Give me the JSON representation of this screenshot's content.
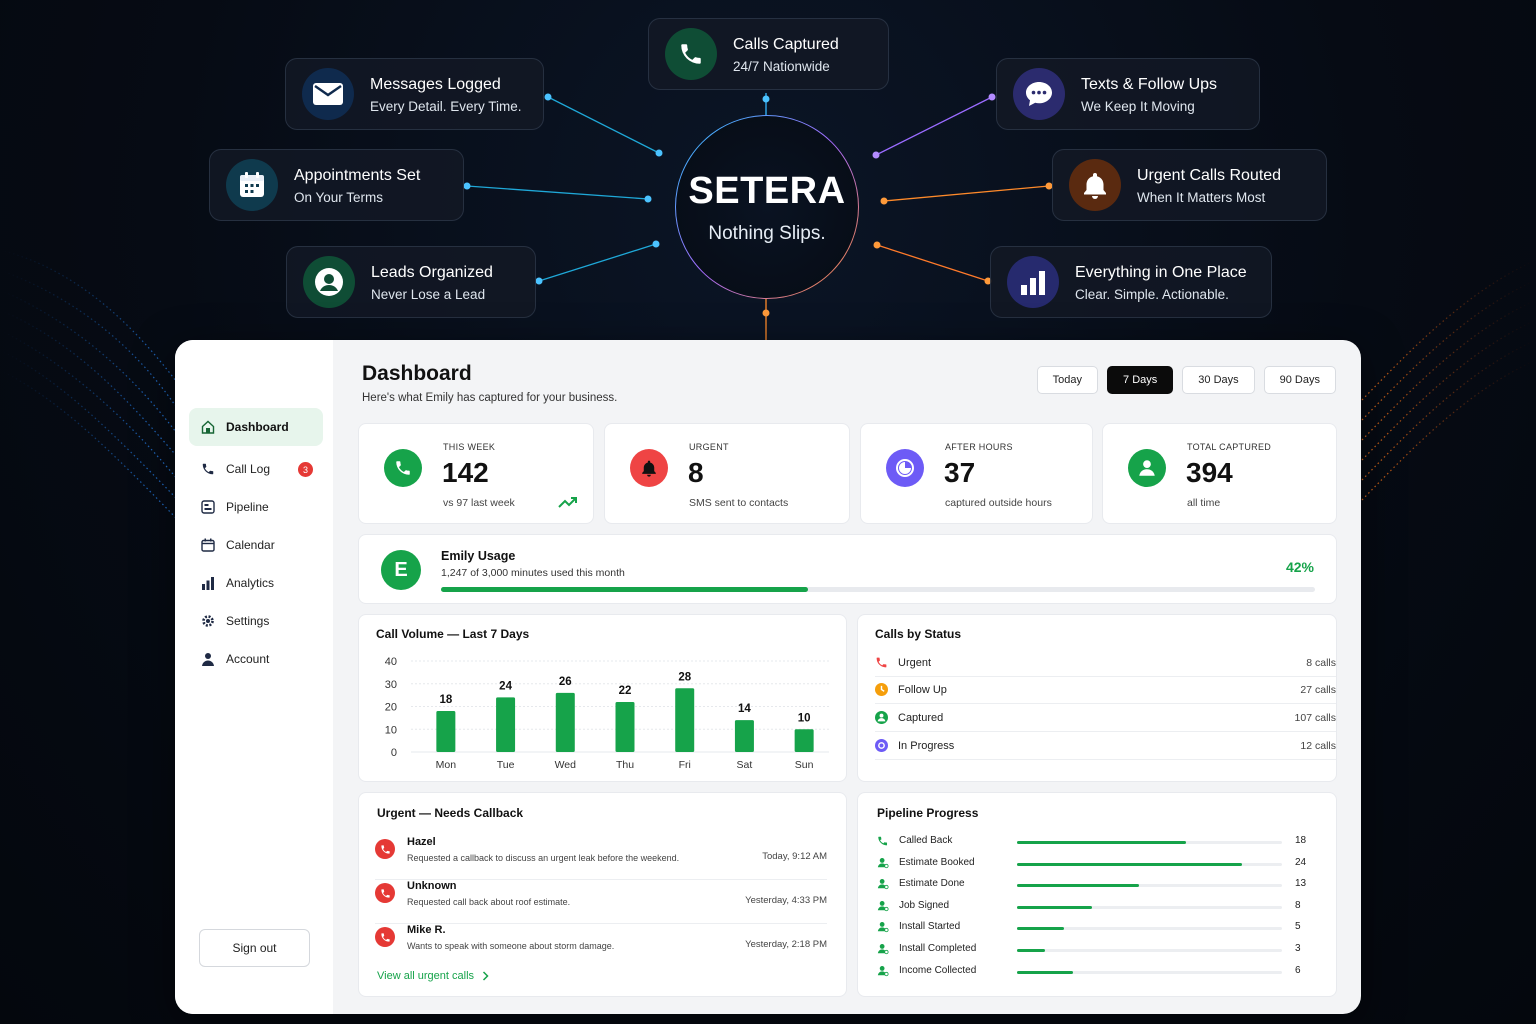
{
  "hero": {
    "brand": "SETERA",
    "tagline": "Nothing Slips.",
    "features": [
      {
        "title": "Calls Captured",
        "subtitle": "24/7 Nationwide",
        "icon": "phone-icon"
      },
      {
        "title": "Messages Logged",
        "subtitle": "Every Detail. Every Time.",
        "icon": "envelope-icon"
      },
      {
        "title": "Texts & Follow Ups",
        "subtitle": "We Keep It Moving",
        "icon": "chat-bubble-icon"
      },
      {
        "title": "Appointments Set",
        "subtitle": "On Your Terms",
        "icon": "calendar-icon"
      },
      {
        "title": "Urgent Calls Routed",
        "subtitle": "When It Matters Most",
        "icon": "bell-icon"
      },
      {
        "title": "Leads Organized",
        "subtitle": "Never Lose a Lead",
        "icon": "user-icon"
      },
      {
        "title": "Everything in One Place",
        "subtitle": "Clear. Simple. Actionable.",
        "icon": "bar-chart-icon"
      }
    ]
  },
  "sidebar": {
    "items": [
      {
        "label": "Dashboard",
        "icon": "home-icon",
        "active": true
      },
      {
        "label": "Call Log",
        "icon": "phone-icon",
        "badge": "3"
      },
      {
        "label": "Pipeline",
        "icon": "pipeline-icon"
      },
      {
        "label": "Calendar",
        "icon": "calendar-icon"
      },
      {
        "label": "Analytics",
        "icon": "bar-chart-icon"
      },
      {
        "label": "Settings",
        "icon": "gear-icon"
      },
      {
        "label": "Account",
        "icon": "user-icon"
      }
    ],
    "signout": "Sign out"
  },
  "header": {
    "title": "Dashboard",
    "subtitle": "Here's what Emily has captured for your business.",
    "ranges": [
      "Today",
      "7 Days",
      "30 Days",
      "90 Days"
    ],
    "active_range": "7 Days"
  },
  "stats": [
    {
      "label": "THIS WEEK",
      "value": "142",
      "note": "vs 97 last week",
      "color": "#16a34a",
      "icon": "phone-icon"
    },
    {
      "label": "URGENT",
      "value": "8",
      "note": "SMS sent to contacts",
      "color": "#ef4444",
      "icon": "bell-icon"
    },
    {
      "label": "AFTER HOURS",
      "value": "37",
      "note": "captured outside hours",
      "color": "#6d5bf6",
      "icon": "clock-pie-icon"
    },
    {
      "label": "TOTAL CAPTURED",
      "value": "394",
      "note": "all time",
      "color": "#16a34a",
      "icon": "user-icon"
    }
  ],
  "usage": {
    "avatar": "E",
    "title": "Emily Usage",
    "detail": "1,247 of 3,000 minutes used this month",
    "percent_label": "42%",
    "fraction": 0.42
  },
  "chart_data": {
    "type": "bar",
    "title": "Call Volume — Last 7 Days",
    "categories": [
      "Mon",
      "Tue",
      "Wed",
      "Thu",
      "Fri",
      "Sat",
      "Sun"
    ],
    "values": [
      18,
      24,
      26,
      22,
      28,
      14,
      10
    ],
    "yticks": [
      "0",
      "10",
      "20",
      "30",
      "40"
    ],
    "ylim": [
      0,
      40
    ],
    "grid": true,
    "color": "#16a34a"
  },
  "calls_by_status": {
    "title": "Calls by Status",
    "rows": [
      {
        "label": "Urgent",
        "count": "8 calls",
        "color": "#ef4444"
      },
      {
        "label": "Follow Up",
        "count": "27 calls",
        "color": "#f59e0b"
      },
      {
        "label": "Captured",
        "count": "107 calls",
        "color": "#16a34a"
      },
      {
        "label": "In Progress",
        "count": "12 calls",
        "color": "#6d5bf6"
      }
    ]
  },
  "urgent": {
    "title": "Urgent — Needs Callback",
    "rows": [
      {
        "name": "Hazel",
        "desc": "Requested a callback to discuss an urgent leak before the weekend.",
        "time": "Today, 9:12 AM"
      },
      {
        "name": "Unknown",
        "desc": "Requested call back about roof estimate.",
        "time": "Yesterday, 4:33 PM"
      },
      {
        "name": "Mike R.",
        "desc": "Wants to speak with someone about storm damage.",
        "time": "Yesterday, 2:18 PM"
      }
    ],
    "link": "View all urgent calls"
  },
  "pipeline": {
    "title": "Pipeline Progress",
    "max": 24,
    "rows": [
      {
        "label": "Called Back",
        "value": 18
      },
      {
        "label": "Estimate Booked",
        "value": 24
      },
      {
        "label": "Estimate Done",
        "value": 13
      },
      {
        "label": "Job Signed",
        "value": 8
      },
      {
        "label": "Install Started",
        "value": 5
      },
      {
        "label": "Install Completed",
        "value": 3
      },
      {
        "label": "Income Collected",
        "value": 6
      }
    ]
  }
}
